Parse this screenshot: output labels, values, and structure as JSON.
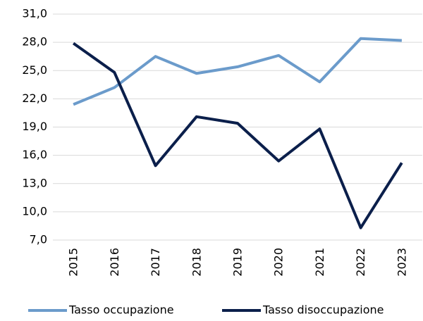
{
  "chart_data": {
    "type": "line",
    "categories": [
      "2015",
      "2016",
      "2017",
      "2018",
      "2019",
      "2020",
      "2021",
      "2022",
      "2023"
    ],
    "series": [
      {
        "name": "Tasso occupazione",
        "color": "#6b9bcb",
        "values": [
          21.4,
          23.2,
          26.5,
          24.7,
          25.4,
          26.6,
          23.8,
          28.4,
          28.2
        ]
      },
      {
        "name": "Tasso disoccupazione",
        "color": "#0b1f4b",
        "values": [
          27.9,
          24.8,
          14.9,
          20.1,
          19.4,
          15.4,
          18.8,
          8.3,
          15.2
        ]
      }
    ],
    "ylim": [
      7,
      31
    ],
    "yticks": [
      {
        "value": 7,
        "label": "7,0"
      },
      {
        "value": 10,
        "label": "10,0"
      },
      {
        "value": 13,
        "label": "13,0"
      },
      {
        "value": 16,
        "label": "16,0"
      },
      {
        "value": 19,
        "label": "19,0"
      },
      {
        "value": 22,
        "label": "22,0"
      },
      {
        "value": 25,
        "label": "25,0"
      },
      {
        "value": 28,
        "label": "28,0"
      },
      {
        "value": 31,
        "label": "31,0"
      }
    ],
    "grid": true,
    "legend": "bottom"
  }
}
